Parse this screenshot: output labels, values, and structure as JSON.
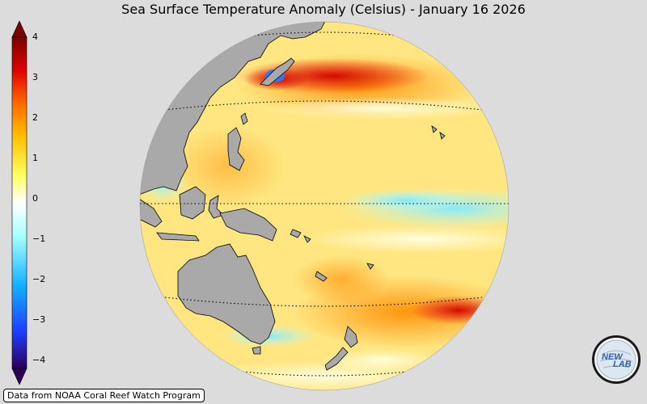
{
  "title": "Sea Surface Temperature Anomaly (Celsius) - January 16 2026",
  "colorbar": {
    "min": -4,
    "max": 4,
    "ticks": [
      "4",
      "3",
      "2",
      "1",
      "0",
      "−1",
      "−2",
      "−3",
      "−4"
    ],
    "colors": [
      "#2a0057",
      "#1f3cff",
      "#13b0ff",
      "#a8ffff",
      "#ffffff",
      "#ffff66",
      "#ffc000",
      "#ff6a00",
      "#e00000",
      "#7a0000"
    ]
  },
  "map": {
    "land_color": "#a9a9a9",
    "ocean_base_color": "#ffe680"
  },
  "credit": "Data from NOAA Coral Reef Watch Program",
  "logo": {
    "text_top": "NEW",
    "text_bottom": "LAB"
  }
}
